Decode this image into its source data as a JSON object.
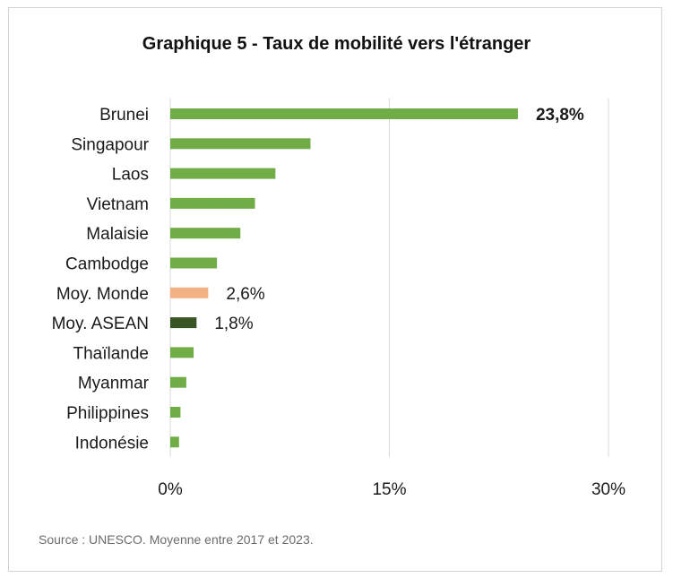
{
  "title": "Graphique 5 - Taux de mobilité vers l'étranger",
  "source": "Source : UNESCO. Moyenne entre 2017 et 2023.",
  "chart_data": {
    "type": "bar",
    "orientation": "horizontal",
    "title": "Graphique 5 - Taux de mobilité vers l'étranger",
    "xlim": [
      0,
      30
    ],
    "xticks": [
      {
        "value": 0,
        "label": "0%"
      },
      {
        "value": 15,
        "label": "15%"
      },
      {
        "value": 30,
        "label": "30%"
      }
    ],
    "grid": "vertical",
    "categories": [
      "Brunei",
      "Singapour",
      "Laos",
      "Vietnam",
      "Malaisie",
      "Cambodge",
      "Moy. Monde",
      "Moy. ASEAN",
      "Thaïlande",
      "Myanmar",
      "Philippines",
      "Indonésie"
    ],
    "values": [
      23.8,
      9.6,
      7.2,
      5.8,
      4.8,
      3.2,
      2.6,
      1.8,
      1.6,
      1.1,
      0.7,
      0.6
    ],
    "colors": [
      "#70ad47",
      "#70ad47",
      "#70ad47",
      "#70ad47",
      "#70ad47",
      "#70ad47",
      "#f4b183",
      "#375623",
      "#70ad47",
      "#70ad47",
      "#70ad47",
      "#70ad47"
    ],
    "data_labels": [
      {
        "index": 0,
        "text": "23,8%",
        "bold": true
      },
      {
        "index": 6,
        "text": "2,6%",
        "bold": false
      },
      {
        "index": 7,
        "text": "1,8%",
        "bold": false
      }
    ]
  }
}
